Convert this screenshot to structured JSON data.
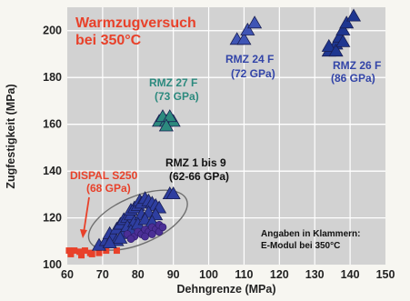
{
  "chart_data": {
    "type": "scatter",
    "title": "Warmzugversuch",
    "subtitle": "bei 350°C",
    "xlabel": "Dehngrenze (MPa)",
    "ylabel": "Zugfestigkeit (MPa)",
    "xlim": [
      60,
      150
    ],
    "ylim": [
      100,
      210
    ],
    "x_ticks": [
      60,
      70,
      80,
      90,
      100,
      110,
      120,
      130,
      140,
      150
    ],
    "y_ticks": [
      100,
      120,
      140,
      160,
      180,
      200
    ],
    "grid": true,
    "series": [
      {
        "name": "DISPAL S250",
        "label_line2": "(68 GPa)",
        "marker": "square",
        "color": "#e8412a",
        "points": [
          [
            60.5,
            106
          ],
          [
            62,
            106
          ],
          [
            63.5,
            105.5
          ],
          [
            65,
            106
          ],
          [
            66.5,
            105
          ],
          [
            69,
            105
          ],
          [
            71,
            106
          ],
          [
            61,
            104.5
          ],
          [
            64,
            104
          ],
          [
            67,
            104.5
          ],
          [
            74,
            106
          ]
        ]
      },
      {
        "name": "RMZ 1 bis 9",
        "label_line2": "(62-66 GPa)",
        "marker": "triangle",
        "color": "#2e3ea0",
        "points": [
          [
            69,
            108
          ],
          [
            71,
            110
          ],
          [
            72,
            113
          ],
          [
            73,
            112
          ],
          [
            74,
            115
          ],
          [
            75,
            117
          ],
          [
            76,
            119
          ],
          [
            77,
            120
          ],
          [
            78,
            121
          ],
          [
            78,
            123
          ],
          [
            79,
            124
          ],
          [
            80,
            125
          ],
          [
            80.5,
            127
          ],
          [
            81,
            126
          ],
          [
            82,
            128
          ],
          [
            83,
            127
          ],
          [
            84,
            126
          ],
          [
            85,
            125
          ],
          [
            86,
            124
          ],
          [
            74,
            110
          ],
          [
            76,
            113
          ],
          [
            77,
            116
          ],
          [
            79,
            118
          ],
          [
            81,
            121
          ],
          [
            83,
            122
          ],
          [
            85,
            121
          ],
          [
            89,
            130
          ],
          [
            90,
            130
          ],
          [
            72,
            109
          ],
          [
            75,
            111
          ],
          [
            78,
            114
          ],
          [
            80,
            117
          ],
          [
            82,
            119
          ],
          [
            84,
            118
          ]
        ]
      },
      {
        "name": "RMZ 1 bis 9 (circles)",
        "marker": "circle",
        "color": "#4b2f96",
        "points": [
          [
            77,
            113
          ],
          [
            79,
            112
          ],
          [
            80,
            114
          ],
          [
            81,
            113
          ],
          [
            82,
            115
          ],
          [
            83,
            114
          ],
          [
            84,
            116
          ],
          [
            85,
            115
          ],
          [
            86,
            117
          ],
          [
            78,
            111
          ],
          [
            82,
            112
          ],
          [
            84,
            113
          ],
          [
            86,
            114
          ],
          [
            87,
            116
          ]
        ]
      },
      {
        "name": "RMZ 27 F",
        "label_line2": "(73 GPa)",
        "marker": "triangle",
        "color": "#2c8a7e",
        "points": [
          [
            86,
            161
          ],
          [
            88,
            161
          ],
          [
            90,
            161
          ],
          [
            87,
            163
          ],
          [
            89,
            163
          ],
          [
            88,
            159
          ]
        ]
      },
      {
        "name": "RMZ 24 F",
        "label_line2": "(72 GPa)",
        "marker": "triangle",
        "color": "#3f55b5",
        "points": [
          [
            108,
            196
          ],
          [
            110,
            196
          ],
          [
            111,
            200
          ],
          [
            113,
            203
          ]
        ]
      },
      {
        "name": "RMZ 26 F",
        "label_line2": "(86 GPa)",
        "marker": "triangle",
        "color": "#1e3690",
        "points": [
          [
            134,
            191
          ],
          [
            136,
            194
          ],
          [
            137,
            197
          ],
          [
            138,
            200
          ],
          [
            139,
            203
          ],
          [
            141,
            206
          ],
          [
            134,
            193
          ],
          [
            136,
            191
          ],
          [
            138,
            195
          ]
        ]
      }
    ],
    "annotations": {
      "note_line1": "Angaben in Klammern:",
      "note_line2": "E-Modul bei 350°C"
    },
    "colors": {
      "title": "#e8412a",
      "grid": "#ffffff",
      "plot_background": "#d2d2d2",
      "ellipse": "#707070"
    }
  }
}
